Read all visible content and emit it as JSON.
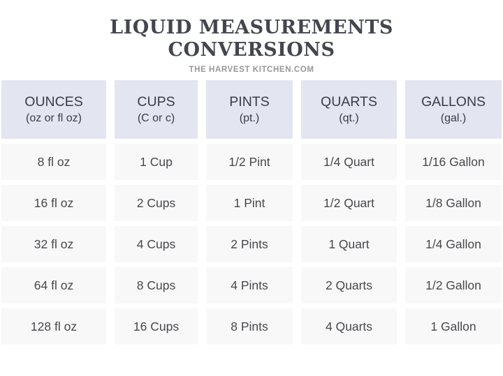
{
  "header": {
    "title_line1": "LIQUID MEASUREMENTS",
    "title_line2": "CONVERSIONS",
    "subtitle": "THE HARVEST KITCHEN.COM"
  },
  "chart_data": {
    "type": "table",
    "title": "LIQUID MEASUREMENTS CONVERSIONS",
    "source": "THE HARVEST KITCHEN.COM",
    "columns": [
      {
        "label": "OUNCES",
        "sublabel": "(oz or fl oz)"
      },
      {
        "label": "CUPS",
        "sublabel": "(C or c)"
      },
      {
        "label": "PINTS",
        "sublabel": "(pt.)"
      },
      {
        "label": "QUARTS",
        "sublabel": "(qt.)"
      },
      {
        "label": "GALLONS",
        "sublabel": "(gal.)"
      }
    ],
    "rows": [
      [
        "8 fl oz",
        "1 Cup",
        "1/2 Pint",
        "1/4 Quart",
        "1/16 Gallon"
      ],
      [
        "16 fl oz",
        "2 Cups",
        "1 Pint",
        "1/2 Quart",
        "1/8 Gallon"
      ],
      [
        "32 fl oz",
        "4 Cups",
        "2 Pints",
        "1 Quart",
        "1/4 Gallon"
      ],
      [
        "64 fl oz",
        "8 Cups",
        "4 Pints",
        "2 Quarts",
        "1/2 Gallon"
      ],
      [
        "128 fl oz",
        "16 Cups",
        "8 Pints",
        "4 Quarts",
        "1 Gallon"
      ]
    ]
  },
  "colors": {
    "page_bg": "#ffffff",
    "title_text": "#43464e",
    "subtitle_text": "#97979a",
    "header_cell_bg": "#e3e5f0",
    "header_text": "#373d4b",
    "data_cell_bg": "#f8f8f9",
    "data_text": "#48484c",
    "gutter": "#ffffff"
  }
}
